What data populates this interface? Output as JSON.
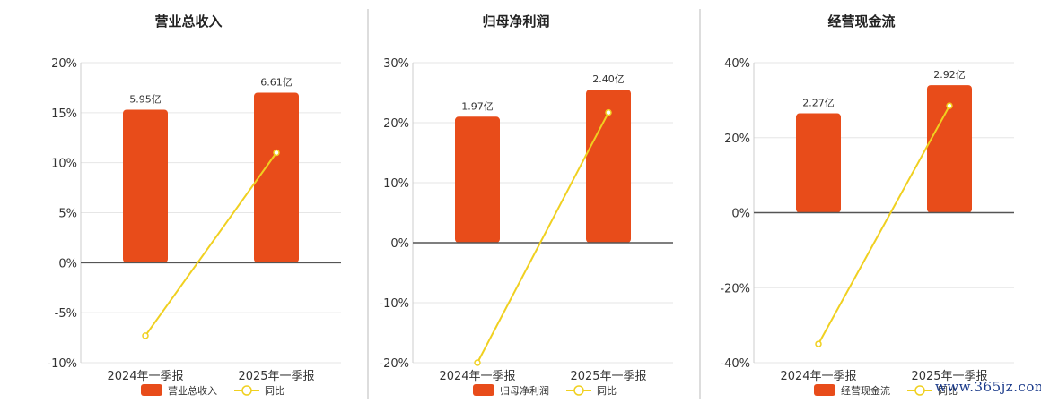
{
  "colors": {
    "bar": "#E84C1A",
    "line": "#F0D020",
    "axis": "#555555",
    "grid": "#e6e6e6",
    "divider": "#bbbbbb"
  },
  "watermark": "www.365jz.com",
  "chart_data": [
    {
      "type": "bar",
      "title": "营业总收入",
      "categories": [
        "2024年一季报",
        "2025年一季报"
      ],
      "ylim": [
        -10,
        20
      ],
      "yticks": [
        -10,
        -5,
        0,
        5,
        10,
        15,
        20
      ],
      "series": [
        {
          "name": "营业总收入",
          "kind": "bar",
          "values": [
            15.3,
            17.0
          ],
          "labels": [
            "5.95亿",
            "6.61亿"
          ]
        },
        {
          "name": "同比",
          "kind": "line",
          "values": [
            -7.3,
            11.0
          ]
        }
      ],
      "grid": true,
      "legend": "bottom-center"
    },
    {
      "type": "bar",
      "title": "归母净利润",
      "categories": [
        "2024年一季报",
        "2025年一季报"
      ],
      "ylim": [
        -20,
        30
      ],
      "yticks": [
        -20,
        -10,
        0,
        10,
        20,
        30
      ],
      "series": [
        {
          "name": "归母净利润",
          "kind": "bar",
          "values": [
            21.0,
            25.5
          ],
          "labels": [
            "1.97亿",
            "2.40亿"
          ]
        },
        {
          "name": "同比",
          "kind": "line",
          "values": [
            -20.0,
            21.7
          ]
        }
      ],
      "grid": true,
      "legend": "bottom-center"
    },
    {
      "type": "bar",
      "title": "经营现金流",
      "categories": [
        "2024年一季报",
        "2025年一季报"
      ],
      "ylim": [
        -40,
        40
      ],
      "yticks": [
        -40,
        -20,
        0,
        20,
        40
      ],
      "series": [
        {
          "name": "经营现金流",
          "kind": "bar",
          "values": [
            26.5,
            34.0
          ],
          "labels": [
            "2.27亿",
            "2.92亿"
          ]
        },
        {
          "name": "同比",
          "kind": "line",
          "values": [
            -35.0,
            28.5
          ]
        }
      ],
      "grid": true,
      "legend": "bottom-center"
    }
  ]
}
